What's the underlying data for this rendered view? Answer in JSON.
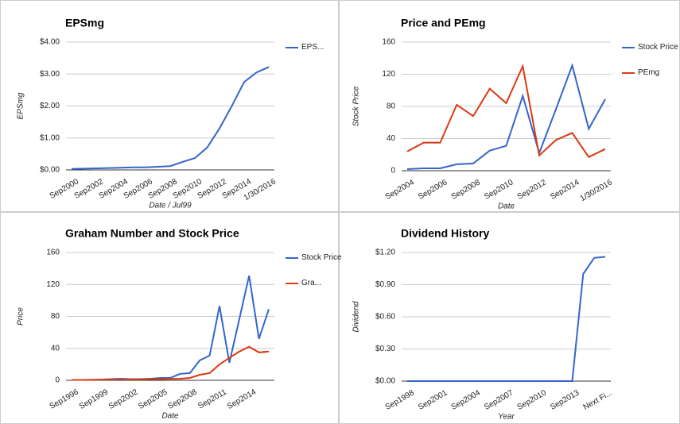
{
  "chart_data": [
    {
      "type": "line",
      "title": "EPSmg",
      "x_label": "Date / Jul99",
      "y_label": "EPSmg",
      "categories": [
        "Sep2000",
        null,
        "Sep2002",
        null,
        "Sep2004",
        null,
        "Sep2006",
        null,
        "Sep2008",
        null,
        "Sep2010",
        null,
        "Sep2012",
        null,
        "Sep2014",
        null,
        "1/30/2016"
      ],
      "series": [
        {
          "name": "EPS...",
          "color": "#3366cc",
          "values": [
            0.03,
            0.04,
            0.05,
            0.06,
            0.07,
            0.08,
            0.08,
            0.1,
            0.12,
            0.25,
            0.37,
            0.7,
            1.3,
            2.0,
            2.75,
            3.05,
            3.22
          ]
        }
      ],
      "ylim": [
        0,
        4
      ],
      "yticks": [
        {
          "value": 0,
          "label": "$0.00"
        },
        {
          "value": 1,
          "label": "$1.00"
        },
        {
          "value": 2,
          "label": "$2.00"
        },
        {
          "value": 3,
          "label": "$3.00"
        },
        {
          "value": 4,
          "label": "$4.00"
        }
      ],
      "grid": true,
      "legend": "right"
    },
    {
      "type": "line",
      "title": "Price and PEmg",
      "x_label": "Date",
      "y_label": "Stock Price",
      "categories": [
        "Sep2004",
        null,
        "Sep2006",
        null,
        "Sep2008",
        null,
        "Sep2010",
        null,
        "Sep2012",
        null,
        "Sep2014",
        null,
        "1/30/2016"
      ],
      "series": [
        {
          "name": "Stock Price",
          "color": "#3366cc",
          "values": [
            2,
            3,
            3,
            8,
            9,
            25,
            31,
            93,
            22,
            76,
            131,
            52,
            89
          ]
        },
        {
          "name": "PEmg",
          "color": "#dc3912",
          "values": [
            24,
            35,
            35,
            82,
            68,
            102,
            84,
            130,
            19,
            38,
            47,
            17,
            27
          ]
        }
      ],
      "ylim": [
        0,
        160
      ],
      "yticks": [
        0,
        40,
        80,
        120,
        160
      ],
      "grid": true,
      "legend": "right"
    },
    {
      "type": "line",
      "title": "Graham Number and Stock Price",
      "x_label": "Date",
      "y_label": "Price",
      "categories": [
        "Sep1996",
        null,
        null,
        "Sep1999",
        null,
        null,
        "Sep2002",
        null,
        null,
        "Sep2005",
        null,
        null,
        "Sep2008",
        null,
        null,
        "Sep2011",
        null,
        null,
        "Sep2014",
        null,
        null
      ],
      "series": [
        {
          "name": "Stock Price",
          "color": "#3366cc",
          "values": [
            0.5,
            0.5,
            0.7,
            1,
            1.5,
            2,
            1.5,
            1.5,
            2,
            3,
            3,
            8,
            9,
            25,
            31,
            93,
            22,
            76,
            131,
            52,
            89
          ]
        },
        {
          "name": "Gra...",
          "color": "#dc3912",
          "values": [
            0.5,
            0.5,
            0.5,
            0.8,
            1,
            1,
            1,
            1.2,
            1.5,
            1.5,
            1.8,
            2,
            3,
            7,
            9,
            20,
            28,
            36,
            42,
            35,
            36
          ]
        }
      ],
      "ylim": [
        0,
        160
      ],
      "yticks": [
        0,
        40,
        80,
        120,
        160
      ],
      "grid": true,
      "legend": "right"
    },
    {
      "type": "line",
      "title": "Dividend History",
      "x_label": "Year",
      "y_label": "Dividend",
      "categories": [
        "Sep1998",
        null,
        null,
        "Sep2001",
        null,
        null,
        "Sep2004",
        null,
        null,
        "Sep2007",
        null,
        null,
        "Sep2010",
        null,
        null,
        "Sep2013",
        null,
        null,
        "Next Fi..."
      ],
      "values": [
        0,
        0,
        0,
        0,
        0,
        0,
        0,
        0,
        0,
        0,
        0,
        0,
        0,
        0,
        0,
        0,
        1.0,
        1.15,
        1.16
      ],
      "color": "#3366cc",
      "ylim": [
        0,
        1.2
      ],
      "yticks": [
        {
          "value": 0,
          "label": "$0.00"
        },
        {
          "value": 0.3,
          "label": "$0.30"
        },
        {
          "value": 0.6,
          "label": "$0.60"
        },
        {
          "value": 0.9,
          "label": "$0.90"
        },
        {
          "value": 1.2,
          "label": "$1.20"
        }
      ],
      "grid": true
    }
  ]
}
